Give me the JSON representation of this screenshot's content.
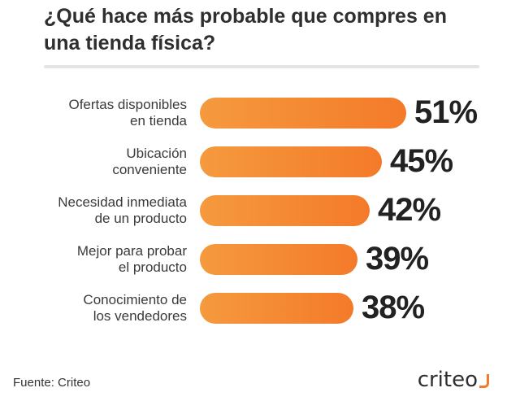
{
  "title": "¿Qué hace más probable que compres en una tienda física?",
  "source": "Fuente: Criteo",
  "logo_text": "criteo",
  "colors": {
    "bar_start": "#f59a3e",
    "bar_end": "#f47a2a",
    "text": "#2b2b2b"
  },
  "chart_data": {
    "type": "bar",
    "orientation": "horizontal",
    "title": "¿Qué hace más probable que compres en una tienda física?",
    "categories": [
      [
        "Ofertas disponibles",
        "en tienda"
      ],
      [
        "Ubicación",
        "conveniente"
      ],
      [
        "Necesidad inmediata",
        "de un producto"
      ],
      [
        "Mejor para probar",
        "el producto"
      ],
      [
        "Conocimiento de",
        "los vendedores"
      ]
    ],
    "values": [
      51,
      45,
      42,
      39,
      38
    ],
    "value_labels": [
      "51%",
      "45%",
      "42%",
      "39%",
      "38%"
    ],
    "xlim": [
      0,
      51
    ],
    "grid": false,
    "legend": "none"
  }
}
